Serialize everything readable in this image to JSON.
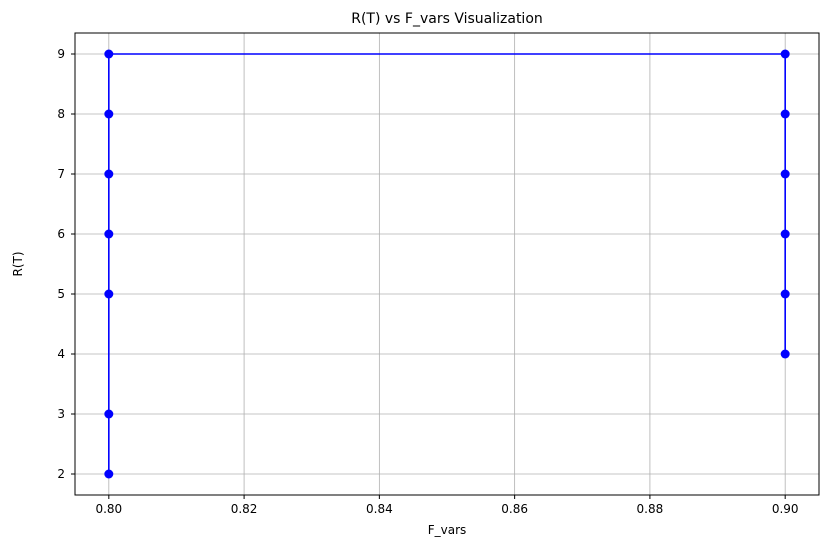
{
  "chart_data": {
    "type": "line",
    "title": "R(T) vs F_vars Visualization",
    "xlabel": "F_vars",
    "ylabel": "R(T)",
    "xlim": [
      0.795,
      0.905
    ],
    "ylim": [
      1.65,
      9.35
    ],
    "xticks": [
      0.8,
      0.82,
      0.84,
      0.86,
      0.88,
      0.9
    ],
    "xtick_labels": [
      "0.80",
      "0.82",
      "0.84",
      "0.86",
      "0.88",
      "0.90"
    ],
    "yticks": [
      2,
      3,
      4,
      5,
      6,
      7,
      8,
      9
    ],
    "ytick_labels": [
      "2",
      "3",
      "4",
      "5",
      "6",
      "7",
      "8",
      "9"
    ],
    "grid": true,
    "series": [
      {
        "color": "#0000ff",
        "marker": "circle",
        "points": [
          {
            "x": 0.8,
            "y": 2
          },
          {
            "x": 0.8,
            "y": 3
          },
          {
            "x": 0.8,
            "y": 5
          },
          {
            "x": 0.8,
            "y": 6
          },
          {
            "x": 0.8,
            "y": 7
          },
          {
            "x": 0.8,
            "y": 8
          },
          {
            "x": 0.8,
            "y": 9
          },
          {
            "x": 0.9,
            "y": 9
          },
          {
            "x": 0.9,
            "y": 8
          },
          {
            "x": 0.9,
            "y": 7
          },
          {
            "x": 0.9,
            "y": 6
          },
          {
            "x": 0.9,
            "y": 5
          },
          {
            "x": 0.9,
            "y": 4
          }
        ]
      }
    ]
  }
}
